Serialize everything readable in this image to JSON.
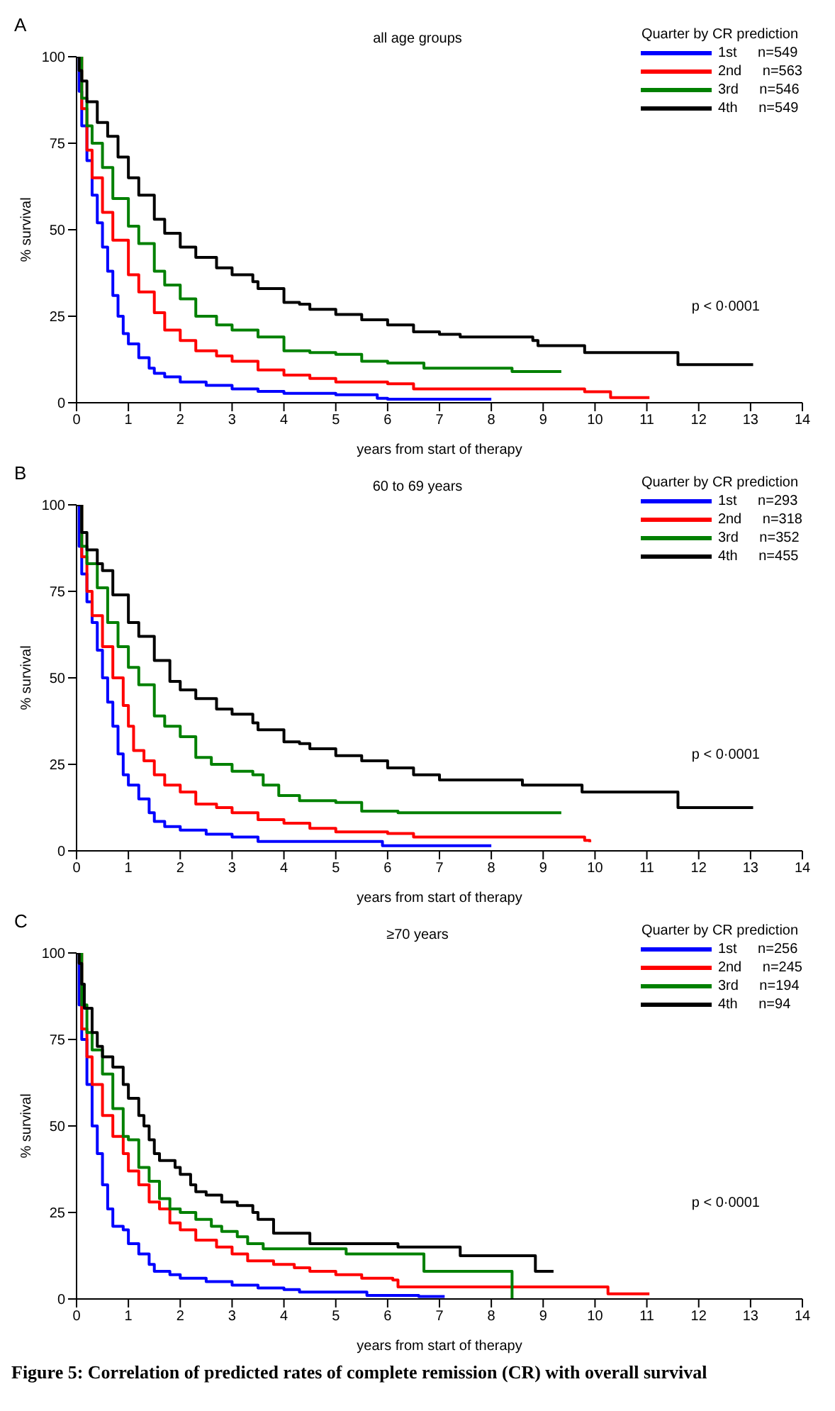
{
  "chart_data": [
    {
      "type": "step",
      "title": "all age groups",
      "xlabel": "years from start of therapy",
      "ylabel": "% survival",
      "legend_title": "Quarter by CR prediction",
      "legend": "top right",
      "annotations": [
        "A",
        "p < 0·0001"
      ],
      "xlim": [
        0,
        14
      ],
      "xticks": [
        0,
        1,
        2,
        3,
        4,
        5,
        6,
        7,
        8,
        9,
        10,
        11,
        12,
        13,
        14
      ],
      "ylim": [
        0,
        100
      ],
      "yticks": [
        0,
        25,
        50,
        75,
        100
      ],
      "series": [
        {
          "name": "1st n=549",
          "color": "#0000ff",
          "x": [
            0,
            0.05,
            0.1,
            0.2,
            0.3,
            0.4,
            0.5,
            0.6,
            0.7,
            0.8,
            0.9,
            1.0,
            1.2,
            1.4,
            1.5,
            1.7,
            2.0,
            2.5,
            3,
            3.5,
            4,
            5,
            5.8,
            6,
            8
          ],
          "values": [
            100,
            90,
            80,
            70,
            60,
            52,
            45,
            38,
            31,
            25,
            20,
            17,
            13,
            10,
            8.5,
            7.5,
            6,
            5,
            4,
            3.3,
            2.7,
            2.3,
            1.3,
            1,
            1
          ]
        },
        {
          "name": "2nd n=563",
          "color": "#ff0000",
          "x": [
            0,
            0.1,
            0.2,
            0.3,
            0.5,
            0.7,
            1.0,
            1.2,
            1.5,
            1.7,
            2.0,
            2.3,
            2.7,
            3,
            3.5,
            4,
            4.5,
            5,
            6,
            6.5,
            9.8,
            10.3,
            11.05
          ],
          "values": [
            100,
            85,
            73,
            65,
            55,
            47,
            37,
            32,
            26,
            21,
            18,
            15,
            13.5,
            12,
            9.5,
            8,
            7,
            6,
            5.5,
            4,
            3.2,
            1.5,
            1.5
          ]
        },
        {
          "name": "3rd n=546",
          "color": "#008000",
          "x": [
            0,
            0.1,
            0.2,
            0.3,
            0.5,
            0.7,
            1.0,
            1.2,
            1.5,
            1.7,
            2,
            2.3,
            2.7,
            3,
            3.5,
            4,
            4.5,
            5,
            5.5,
            6,
            6.7,
            8.4,
            9.35
          ],
          "values": [
            100,
            88,
            80,
            75,
            68,
            59,
            51,
            46,
            38,
            34,
            30,
            25,
            22.5,
            21,
            19,
            15,
            14.5,
            14,
            12,
            11.5,
            10,
            9,
            9
          ]
        },
        {
          "name": "4th n=549",
          "color": "#000000",
          "x": [
            0,
            0.05,
            0.1,
            0.2,
            0.4,
            0.6,
            0.8,
            1.0,
            1.2,
            1.5,
            1.7,
            2,
            2.3,
            2.7,
            3,
            3.4,
            3.5,
            4,
            4.3,
            4.5,
            5,
            5.5,
            6,
            6.5,
            7,
            7.4,
            8.8,
            8.9,
            9.8,
            11.6,
            13.05
          ],
          "values": [
            100,
            96,
            93,
            87,
            81,
            77,
            71,
            65,
            60,
            53,
            49,
            45,
            42,
            39,
            37,
            35,
            33,
            29,
            28.5,
            27,
            25.5,
            24,
            22.5,
            20.5,
            19.8,
            19,
            18,
            16.5,
            14.5,
            11,
            11
          ]
        }
      ]
    },
    {
      "type": "step",
      "title": "60 to 69 years",
      "xlabel": "years from start of therapy",
      "ylabel": "% survival",
      "legend_title": "Quarter by CR prediction",
      "legend": "top right",
      "annotations": [
        "B",
        "p < 0·0001"
      ],
      "xlim": [
        0,
        14
      ],
      "xticks": [
        0,
        1,
        2,
        3,
        4,
        5,
        6,
        7,
        8,
        9,
        10,
        11,
        12,
        13,
        14
      ],
      "ylim": [
        0,
        100
      ],
      "yticks": [
        0,
        25,
        50,
        75,
        100
      ],
      "series": [
        {
          "name": "1st n=293",
          "color": "#0000ff",
          "x": [
            0,
            0.05,
            0.1,
            0.2,
            0.3,
            0.4,
            0.5,
            0.6,
            0.7,
            0.8,
            0.9,
            1.0,
            1.2,
            1.4,
            1.5,
            1.7,
            2,
            2.5,
            3,
            3.5,
            5.9,
            8
          ],
          "values": [
            100,
            88,
            80,
            72,
            66,
            58,
            50,
            43,
            36,
            28,
            22,
            19,
            15,
            11,
            8.5,
            7,
            6,
            4.8,
            4,
            2.7,
            1.5,
            1.5
          ]
        },
        {
          "name": "2nd n=318",
          "color": "#ff0000",
          "x": [
            0,
            0.1,
            0.2,
            0.3,
            0.5,
            0.7,
            0.9,
            1.0,
            1.1,
            1.3,
            1.5,
            1.7,
            2,
            2.3,
            2.7,
            3,
            3.5,
            4,
            4.5,
            5,
            6,
            6.5,
            9.8,
            9.9
          ],
          "values": [
            100,
            85,
            75,
            68,
            59,
            50,
            42,
            36,
            29,
            26,
            22,
            19,
            17,
            13.5,
            12.5,
            11,
            9,
            8,
            6.5,
            5.5,
            5,
            4,
            3,
            2.5
          ]
        },
        {
          "name": "3rd n=352",
          "color": "#008000",
          "x": [
            0,
            0.1,
            0.2,
            0.4,
            0.6,
            0.8,
            1,
            1.2,
            1.5,
            1.7,
            2,
            2.3,
            2.6,
            3,
            3.4,
            3.6,
            3.9,
            4.3,
            5,
            5.5,
            6.2,
            9.35
          ],
          "values": [
            100,
            88,
            83,
            76,
            66,
            59,
            53,
            48,
            39,
            36,
            33,
            27,
            25,
            23,
            22,
            19,
            16,
            14.5,
            14,
            11.5,
            11,
            11
          ]
        },
        {
          "name": "4th n=455",
          "color": "#000000",
          "x": [
            0,
            0.1,
            0.2,
            0.4,
            0.5,
            0.7,
            1,
            1.2,
            1.5,
            1.8,
            2,
            2.3,
            2.7,
            3,
            3.4,
            3.5,
            4,
            4.3,
            4.5,
            5,
            5.5,
            6,
            6.5,
            7,
            8.6,
            9.75,
            11.6,
            13.05
          ],
          "values": [
            100,
            92,
            87,
            83,
            81,
            74,
            66,
            62,
            55,
            49,
            46.5,
            44,
            41,
            39.5,
            37,
            35,
            31.5,
            31,
            29.5,
            27.5,
            26,
            24,
            22,
            20.5,
            19,
            17,
            12.5,
            12.5
          ]
        }
      ]
    },
    {
      "type": "step",
      "title": "≥70 years",
      "xlabel": "years from start of therapy",
      "ylabel": "% survival",
      "legend_title": "Quarter by CR prediction",
      "legend": "top right",
      "annotations": [
        "C",
        "p < 0·0001",
        "Figure 5: Correlation of predicted rates of complete remission (CR) with overall survival"
      ],
      "xlim": [
        0,
        14
      ],
      "xticks": [
        0,
        1,
        2,
        3,
        4,
        5,
        6,
        7,
        8,
        9,
        10,
        11,
        12,
        13,
        14
      ],
      "ylim": [
        0,
        100
      ],
      "yticks": [
        0,
        25,
        50,
        75,
        100
      ],
      "series": [
        {
          "name": "1st n=256",
          "color": "#0000ff",
          "x": [
            0,
            0.05,
            0.1,
            0.2,
            0.3,
            0.4,
            0.5,
            0.6,
            0.7,
            0.9,
            1.0,
            1.2,
            1.4,
            1.5,
            1.8,
            2,
            2.5,
            3,
            3.5,
            4,
            4.3,
            5.6,
            6.6,
            7.1
          ],
          "values": [
            100,
            85,
            75,
            62,
            50,
            42,
            33,
            26,
            21,
            20,
            16,
            13,
            10,
            8,
            7,
            6,
            5,
            4,
            3.2,
            2.7,
            2,
            1,
            0.7,
            0.7
          ]
        },
        {
          "name": "2nd n=245",
          "color": "#ff0000",
          "x": [
            0,
            0.1,
            0.2,
            0.3,
            0.5,
            0.7,
            0.9,
            1,
            1.2,
            1.4,
            1.6,
            1.8,
            2,
            2.3,
            2.7,
            3,
            3.3,
            3.8,
            4.2,
            4.5,
            5,
            5.5,
            6.1,
            6.2,
            10.25,
            11.05
          ],
          "values": [
            100,
            78,
            70,
            62,
            53,
            47,
            42,
            37,
            33,
            28,
            26,
            22,
            20,
            17,
            15,
            13,
            11,
            10,
            9,
            8,
            7,
            6,
            5.5,
            3.5,
            1.5,
            1.5
          ]
        },
        {
          "name": "3rd n=194",
          "color": "#008000",
          "x": [
            0,
            0.1,
            0.2,
            0.3,
            0.5,
            0.7,
            0.9,
            1,
            1.2,
            1.4,
            1.6,
            1.8,
            2,
            2.3,
            2.6,
            2.8,
            3.1,
            3.3,
            3.6,
            5.2,
            6.7,
            8.4
          ],
          "values": [
            100,
            85,
            77,
            72,
            65,
            55,
            47,
            46,
            38,
            34,
            29,
            26,
            25,
            23,
            21,
            19.5,
            18,
            16,
            14.5,
            13,
            8,
            0
          ]
        },
        {
          "name": "4th n=94",
          "color": "#000000",
          "x": [
            0,
            0.05,
            0.1,
            0.15,
            0.3,
            0.4,
            0.5,
            0.7,
            0.9,
            1.0,
            1.2,
            1.3,
            1.4,
            1.5,
            1.6,
            1.9,
            2,
            2.2,
            2.3,
            2.5,
            2.8,
            3.1,
            3.4,
            3.5,
            3.8,
            4.5,
            6.2,
            7.4,
            8.85,
            9.2
          ],
          "values": [
            100,
            97,
            91,
            84,
            77,
            73,
            70,
            67,
            62,
            58,
            53,
            50,
            46,
            42,
            40,
            38,
            36,
            33,
            31,
            30,
            28,
            27,
            25,
            23,
            19,
            16,
            15,
            12.5,
            8,
            8
          ]
        }
      ]
    }
  ]
}
